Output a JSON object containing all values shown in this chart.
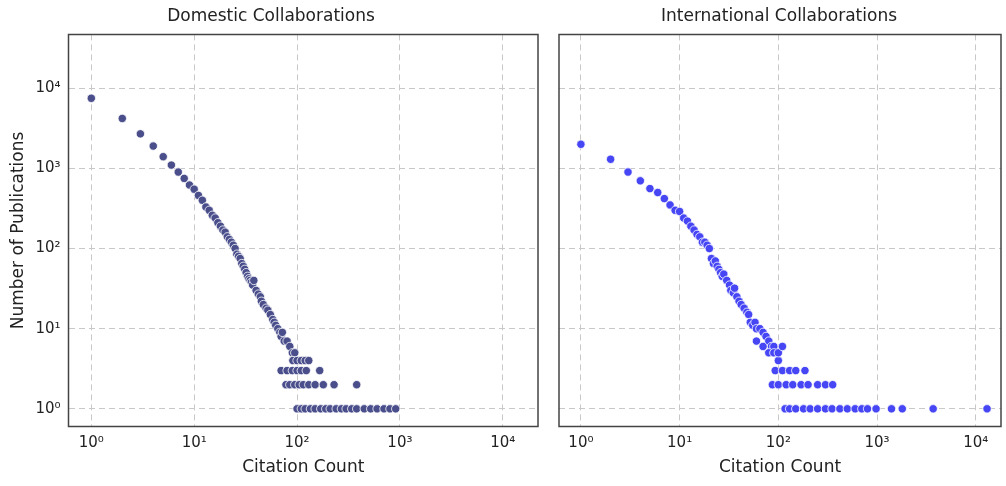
{
  "chart_data": [
    {
      "type": "scatter",
      "title": "Domestic Collaborations",
      "xlabel": "Citation Count",
      "ylabel": "Number of Publications",
      "log": "xy",
      "grid": true,
      "legend": false,
      "marker": "circle",
      "xlim": [
        0.63,
        22000
      ],
      "ylim": [
        0.6,
        47000
      ],
      "xticks": [
        {
          "value": 1,
          "label": "10⁰"
        },
        {
          "value": 10,
          "label": "10¹"
        },
        {
          "value": 100,
          "label": "10²"
        },
        {
          "value": 1000,
          "label": "10³"
        },
        {
          "value": 10000,
          "label": "10⁴"
        }
      ],
      "yticks": [
        {
          "value": 1,
          "label": "10⁰"
        },
        {
          "value": 10,
          "label": "10¹"
        },
        {
          "value": 100,
          "label": "10²"
        },
        {
          "value": 1000,
          "label": "10³"
        },
        {
          "value": 10000,
          "label": "10⁴"
        }
      ],
      "series": [
        {
          "color": "#4a4f8c",
          "x": [
            1,
            2,
            3,
            4,
            5,
            6,
            7,
            8,
            9,
            10,
            11,
            12,
            13,
            14,
            15,
            16,
            17,
            18,
            19,
            20,
            21,
            22,
            23,
            24,
            25,
            26,
            27,
            28,
            29,
            30,
            31,
            32,
            33,
            34,
            35,
            36,
            37,
            38,
            40,
            42,
            44,
            45,
            47,
            50,
            52,
            55,
            58,
            60,
            62,
            65,
            68,
            70,
            72,
            75,
            80,
            85,
            90,
            95,
            70,
            80,
            90,
            100,
            110,
            123,
            166,
            91,
            100,
            110,
            120,
            130,
            78,
            85,
            95,
            105,
            115,
            130,
            150,
            180,
            229,
            380,
            100,
            110,
            120,
            135,
            150,
            170,
            190,
            210,
            240,
            270,
            300,
            340,
            380,
            450,
            520,
            600,
            700,
            800,
            910
          ],
          "values": [
            7500,
            4200,
            2700,
            1900,
            1400,
            1100,
            900,
            750,
            620,
            550,
            460,
            400,
            330,
            300,
            260,
            240,
            210,
            190,
            170,
            160,
            140,
            130,
            120,
            110,
            100,
            85,
            80,
            75,
            65,
            60,
            55,
            50,
            45,
            42,
            40,
            38,
            35,
            40,
            30,
            27,
            25,
            22,
            20,
            18,
            17,
            15,
            13,
            12,
            11,
            10,
            9,
            8,
            9,
            7,
            7,
            6,
            5,
            5,
            3,
            3,
            3,
            3,
            3,
            3,
            3,
            4,
            4,
            4,
            4,
            4,
            2,
            2,
            2,
            2,
            2,
            2,
            2,
            2,
            2,
            2,
            1,
            1,
            1,
            1,
            1,
            1,
            1,
            1,
            1,
            1,
            1,
            1,
            1,
            1,
            1,
            1,
            1,
            1,
            1
          ]
        }
      ]
    },
    {
      "type": "scatter",
      "title": "International Collaborations",
      "xlabel": "Citation Count",
      "log": "xy",
      "grid": true,
      "legend": false,
      "marker": "circle",
      "tick_labels": "x",
      "xlim": [
        0.63,
        18000
      ],
      "ylim": [
        0.6,
        47000
      ],
      "xticks": [
        {
          "value": 1,
          "label": "10⁰"
        },
        {
          "value": 10,
          "label": "10¹"
        },
        {
          "value": 100,
          "label": "10²"
        },
        {
          "value": 1000,
          "label": "10³"
        },
        {
          "value": 10000,
          "label": "10⁴"
        }
      ],
      "yticks": [
        {
          "value": 1,
          "label": null
        },
        {
          "value": 10,
          "label": null
        },
        {
          "value": 100,
          "label": null
        },
        {
          "value": 1000,
          "label": null
        },
        {
          "value": 10000,
          "label": null
        }
      ],
      "series": [
        {
          "color": "#4646f5",
          "x": [
            1,
            2,
            3,
            4,
            5,
            6,
            7,
            8,
            9,
            10,
            11,
            12,
            13,
            14,
            15,
            16,
            17,
            18,
            19,
            20,
            21,
            22,
            23,
            24,
            25,
            26,
            27,
            28,
            30,
            32,
            33,
            35,
            36,
            38,
            40,
            42,
            45,
            48,
            50,
            52,
            55,
            58,
            60,
            65,
            70,
            75,
            80,
            85,
            90,
            100,
            60,
            70,
            80,
            90,
            100,
            110,
            93,
            110,
            130,
            150,
            186,
            87,
            100,
            120,
            140,
            170,
            200,
            250,
            300,
            355,
            117,
            130,
            150,
            180,
            210,
            250,
            300,
            350,
            420,
            500,
            600,
            700,
            800,
            977,
            1400,
            1800,
            3700,
            13000
          ],
          "values": [
            2000,
            1300,
            900,
            700,
            560,
            500,
            420,
            350,
            300,
            290,
            240,
            220,
            190,
            170,
            150,
            140,
            120,
            120,
            110,
            100,
            75,
            65,
            70,
            60,
            55,
            50,
            45,
            48,
            40,
            35,
            30,
            28,
            32,
            25,
            22,
            20,
            18,
            16,
            15,
            12,
            11,
            12,
            10,
            10,
            9,
            8,
            7,
            6,
            6,
            4,
            7,
            6,
            5,
            5,
            5,
            6,
            3,
            3,
            3,
            3,
            3,
            2,
            2,
            2,
            2,
            2,
            2,
            2,
            2,
            2,
            1,
            1,
            1,
            1,
            1,
            1,
            1,
            1,
            1,
            1,
            1,
            1,
            1,
            1,
            1,
            1,
            1,
            1
          ]
        }
      ]
    }
  ]
}
